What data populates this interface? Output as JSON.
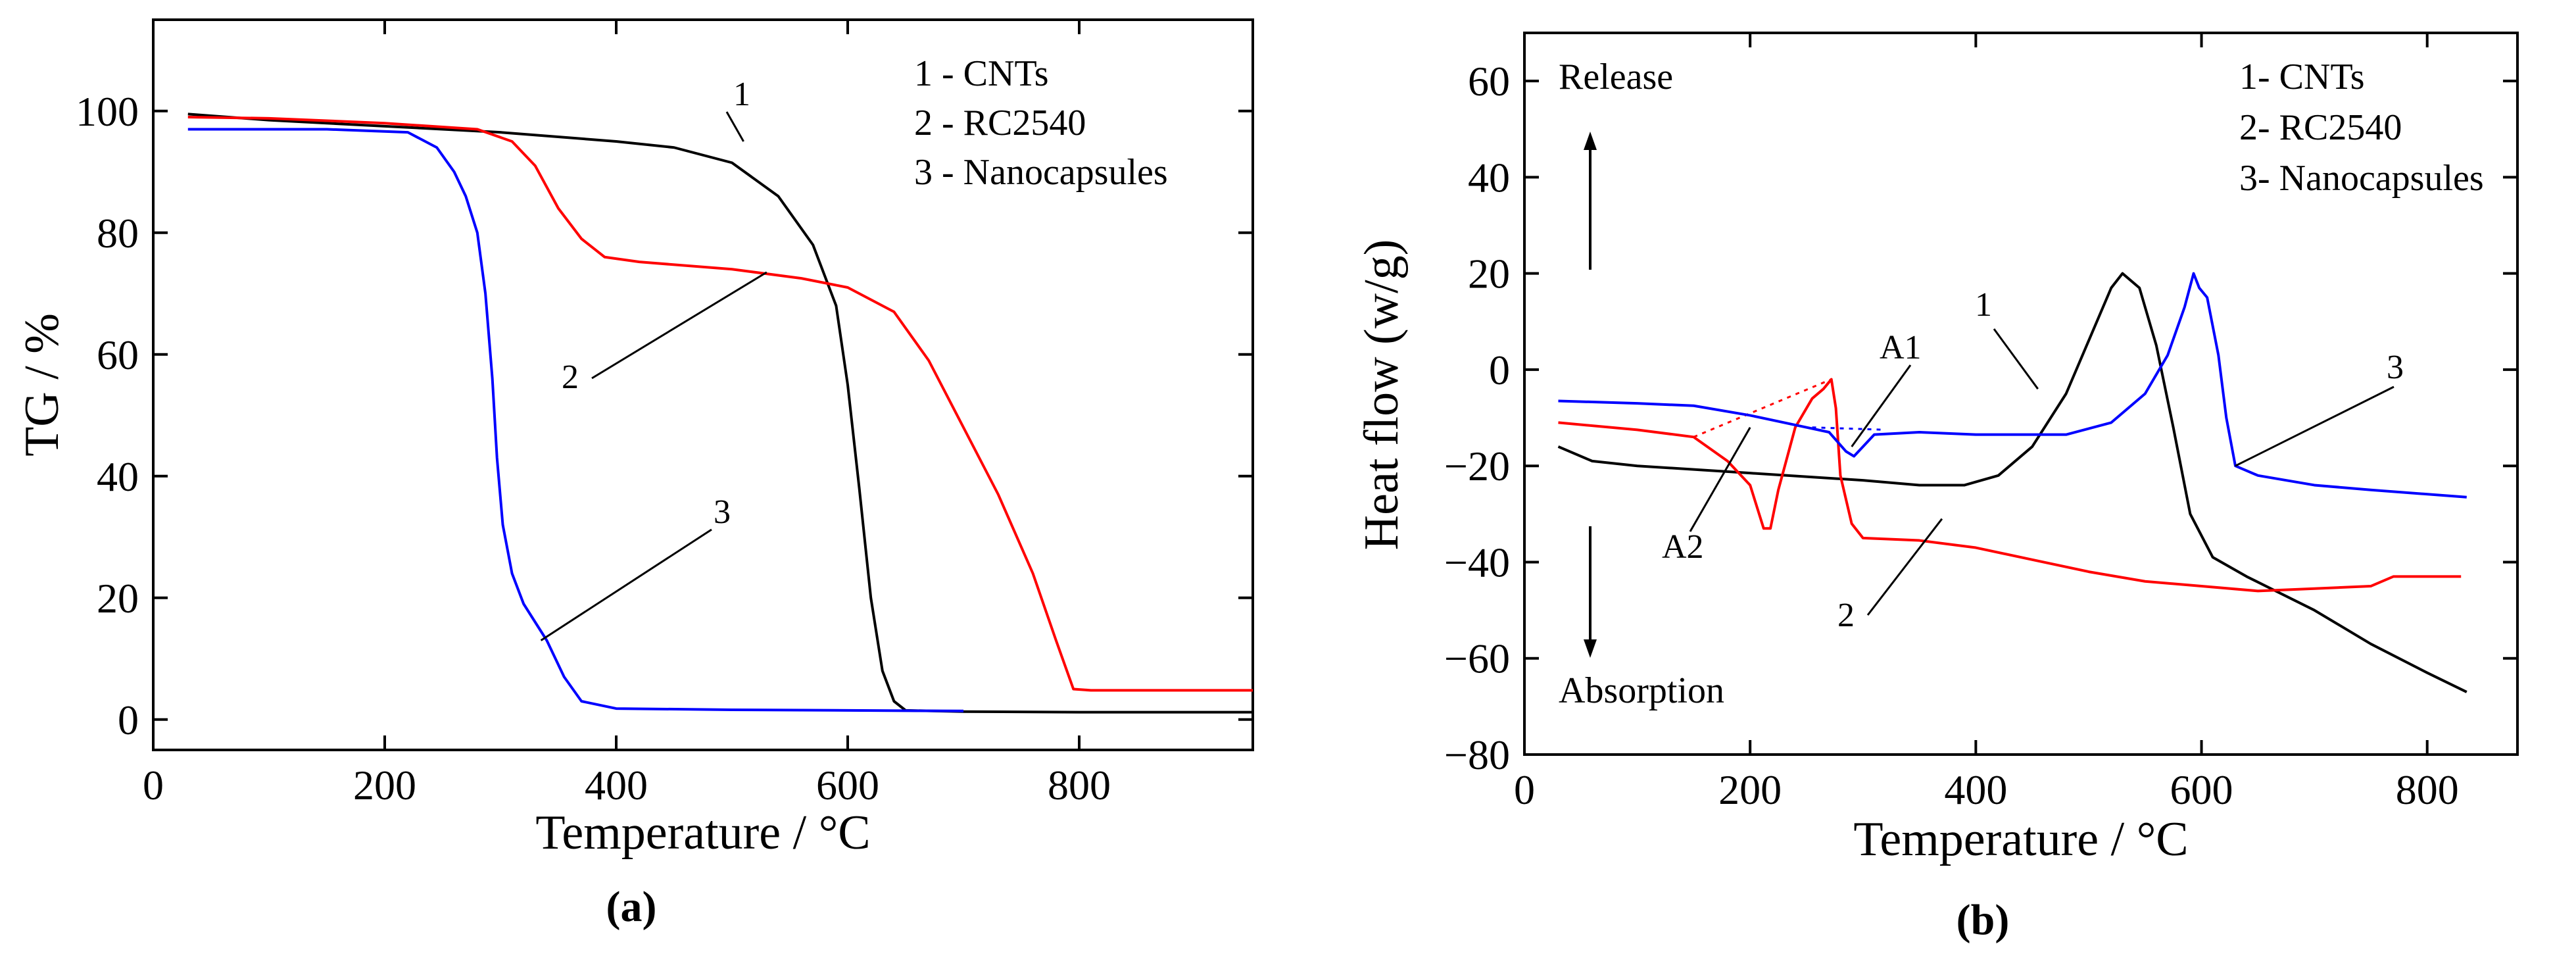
{
  "chart_data": [
    {
      "panel_label": "(a)",
      "type": "line",
      "xlabel": "Temperature / °C",
      "ylabel": "TG / %",
      "xlim": [
        0,
        950
      ],
      "ylim": [
        -5,
        115
      ],
      "x_ticks": [
        0,
        200,
        400,
        600,
        800
      ],
      "y_ticks": [
        0,
        20,
        40,
        60,
        80,
        100
      ],
      "legend_lines": [
        "1 - CNTs",
        "2 - RC2540",
        "3 - Nanocapsules"
      ],
      "legend_position": "top-right",
      "series": [
        {
          "name": "CNTs",
          "label": "1",
          "color": "#000000",
          "points": [
            [
              30,
              99.5
            ],
            [
              100,
              98.5
            ],
            [
              200,
              97.5
            ],
            [
              300,
              96.5
            ],
            [
              400,
              95
            ],
            [
              450,
              94
            ],
            [
              500,
              91.5
            ],
            [
              540,
              86
            ],
            [
              570,
              78
            ],
            [
              590,
              68
            ],
            [
              600,
              55
            ],
            [
              610,
              38
            ],
            [
              620,
              20
            ],
            [
              630,
              8
            ],
            [
              640,
              3
            ],
            [
              650,
              1.5
            ],
            [
              700,
              1.3
            ],
            [
              800,
              1.2
            ],
            [
              950,
              1.2
            ]
          ]
        },
        {
          "name": "RC2540",
          "label": "2",
          "color": "#ff0000",
          "points": [
            [
              30,
              99
            ],
            [
              100,
              98.8
            ],
            [
              200,
              98
            ],
            [
              280,
              97
            ],
            [
              310,
              95
            ],
            [
              330,
              91
            ],
            [
              350,
              84
            ],
            [
              370,
              79
            ],
            [
              390,
              76
            ],
            [
              420,
              75.2
            ],
            [
              500,
              74
            ],
            [
              560,
              72.5
            ],
            [
              600,
              71
            ],
            [
              640,
              67
            ],
            [
              670,
              59
            ],
            [
              700,
              48
            ],
            [
              730,
              37
            ],
            [
              760,
              24
            ],
            [
              780,
              13
            ],
            [
              795,
              5
            ],
            [
              810,
              4.8
            ],
            [
              950,
              4.8
            ]
          ]
        },
        {
          "name": "Nanocapsules",
          "label": "3",
          "color": "#0000ff",
          "points": [
            [
              30,
              97
            ],
            [
              150,
              97
            ],
            [
              220,
              96.5
            ],
            [
              245,
              94
            ],
            [
              260,
              90
            ],
            [
              270,
              86
            ],
            [
              280,
              80
            ],
            [
              287,
              70
            ],
            [
              293,
              56
            ],
            [
              297,
              43
            ],
            [
              302,
              32
            ],
            [
              310,
              24
            ],
            [
              320,
              19
            ],
            [
              340,
              13
            ],
            [
              355,
              7
            ],
            [
              370,
              3
            ],
            [
              400,
              1.8
            ],
            [
              500,
              1.6
            ],
            [
              600,
              1.5
            ],
            [
              700,
              1.4
            ]
          ]
        }
      ],
      "annotations": [
        {
          "text": "1",
          "points_to": [
            510,
            95
          ]
        },
        {
          "text": "2",
          "points_to": [
            530,
            73.5
          ]
        },
        {
          "text": "3",
          "points_to": [
            335,
            13
          ]
        }
      ]
    },
    {
      "panel_label": "(b)",
      "type": "line",
      "xlabel": "Temperature / °C",
      "ylabel": "Heat flow (w/g)",
      "xlim": [
        0,
        880
      ],
      "ylim": [
        -80,
        70
      ],
      "x_ticks": [
        0,
        200,
        400,
        600,
        800
      ],
      "y_ticks": [
        -80,
        -60,
        -40,
        -20,
        0,
        20,
        40,
        60
      ],
      "legend_lines": [
        "1- CNTs",
        "2- RC2540",
        "3- Nanocapsules"
      ],
      "legend_position": "top-right",
      "arrow_labels": {
        "up": "Release",
        "down": "Absorption"
      },
      "series": [
        {
          "name": "CNTs",
          "label": "1",
          "color": "#000000",
          "points": [
            [
              30,
              -16
            ],
            [
              60,
              -19
            ],
            [
              100,
              -20
            ],
            [
              200,
              -21.5
            ],
            [
              300,
              -23
            ],
            [
              350,
              -24
            ],
            [
              390,
              -24
            ],
            [
              420,
              -22
            ],
            [
              450,
              -16
            ],
            [
              480,
              -5
            ],
            [
              500,
              6
            ],
            [
              520,
              17
            ],
            [
              530,
              20
            ],
            [
              545,
              17
            ],
            [
              560,
              5
            ],
            [
              575,
              -12
            ],
            [
              590,
              -30
            ],
            [
              610,
              -39
            ],
            [
              640,
              -43
            ],
            [
              700,
              -50
            ],
            [
              750,
              -57
            ],
            [
              800,
              -63
            ],
            [
              835,
              -67
            ]
          ]
        },
        {
          "name": "RC2540",
          "label": "2",
          "color": "#ff0000",
          "points": [
            [
              30,
              -11
            ],
            [
              100,
              -12.5
            ],
            [
              150,
              -14
            ],
            [
              180,
              -19
            ],
            [
              200,
              -24
            ],
            [
              212,
              -33
            ],
            [
              218,
              -33
            ],
            [
              225,
              -25
            ],
            [
              240,
              -12
            ],
            [
              255,
              -6
            ],
            [
              265,
              -4
            ],
            [
              272,
              -2
            ],
            [
              276,
              -8
            ],
            [
              280,
              -22
            ],
            [
              290,
              -32
            ],
            [
              300,
              -35
            ],
            [
              350,
              -35.5
            ],
            [
              400,
              -37
            ],
            [
              450,
              -39.5
            ],
            [
              500,
              -42
            ],
            [
              550,
              -44
            ],
            [
              600,
              -45
            ],
            [
              650,
              -46
            ],
            [
              700,
              -45.5
            ],
            [
              750,
              -45
            ],
            [
              770,
              -43
            ],
            [
              830,
              -43
            ]
          ]
        },
        {
          "name": "Nanocapsules",
          "label": "3",
          "color": "#0000ff",
          "points": [
            [
              30,
              -6.5
            ],
            [
              100,
              -7
            ],
            [
              150,
              -7.5
            ],
            [
              200,
              -9.5
            ],
            [
              250,
              -12
            ],
            [
              270,
              -13
            ],
            [
              285,
              -17
            ],
            [
              292,
              -18
            ],
            [
              300,
              -16
            ],
            [
              310,
              -13.5
            ],
            [
              350,
              -13
            ],
            [
              400,
              -13.5
            ],
            [
              480,
              -13.5
            ],
            [
              520,
              -11
            ],
            [
              550,
              -5
            ],
            [
              570,
              3
            ],
            [
              585,
              13
            ],
            [
              593,
              20
            ],
            [
              598,
              17
            ],
            [
              605,
              15
            ],
            [
              615,
              3
            ],
            [
              622,
              -10
            ],
            [
              630,
              -20
            ],
            [
              650,
              -22
            ],
            [
              700,
              -24
            ],
            [
              750,
              -25
            ],
            [
              835,
              -26.5
            ]
          ]
        }
      ],
      "baselines": [
        {
          "color": "#ff0000",
          "points": [
            [
              150,
              -14
            ],
            [
              272,
              -2
            ]
          ]
        },
        {
          "color": "#0000ff",
          "points": [
            [
              255,
              -12
            ],
            [
              320,
              -12.5
            ]
          ]
        }
      ],
      "annotations": [
        {
          "text": "1",
          "points_to": [
            455,
            -4
          ]
        },
        {
          "text": "2",
          "points_to": [
            370,
            -31
          ]
        },
        {
          "text": "3",
          "points_to": [
            630,
            -20
          ]
        },
        {
          "text": "A1",
          "points_to": [
            290,
            -16
          ]
        },
        {
          "text": "A2",
          "points_to": [
            200,
            -12
          ]
        }
      ]
    }
  ]
}
